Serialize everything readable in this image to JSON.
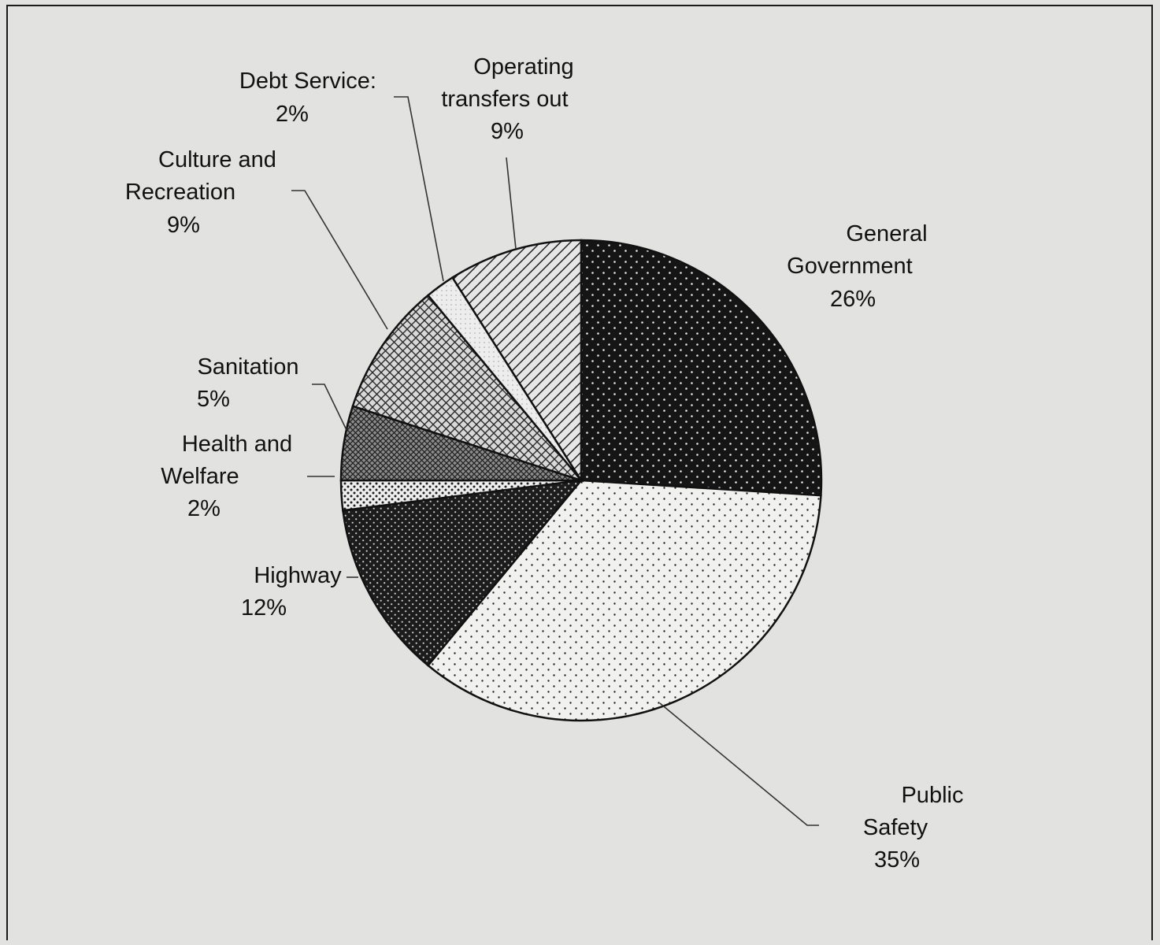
{
  "chart_data": {
    "type": "pie",
    "title": "",
    "slices": [
      {
        "label_lines": [
          "General",
          "Government"
        ],
        "percent_label": "26%",
        "value": 26,
        "pattern": "dots-dark"
      },
      {
        "label_lines": [
          "Public",
          "Safety"
        ],
        "percent_label": "35%",
        "value": 35,
        "pattern": "dots-light"
      },
      {
        "label_lines": [
          "Highway"
        ],
        "percent_label": "12%",
        "value": 12,
        "pattern": "dots-dark-dense"
      },
      {
        "label_lines": [
          "Health and",
          "Welfare"
        ],
        "percent_label": "2%",
        "value": 2,
        "pattern": "dots-light-dense"
      },
      {
        "label_lines": [
          "Sanitation"
        ],
        "percent_label": "5%",
        "value": 5,
        "pattern": "crosshatch-dense"
      },
      {
        "label_lines": [
          "Culture and",
          "Recreation"
        ],
        "percent_label": "9%",
        "value": 9,
        "pattern": "crosshatch"
      },
      {
        "label_lines": [
          "Debt Service:"
        ],
        "percent_label": "2%",
        "value": 2,
        "pattern": "light"
      },
      {
        "label_lines": [
          "Operating",
          "transfers out"
        ],
        "percent_label": "9%",
        "value": 9,
        "pattern": "diagonal-stripes"
      }
    ],
    "start_angle": "12 o'clock",
    "direction": "clockwise",
    "legend": "none"
  }
}
